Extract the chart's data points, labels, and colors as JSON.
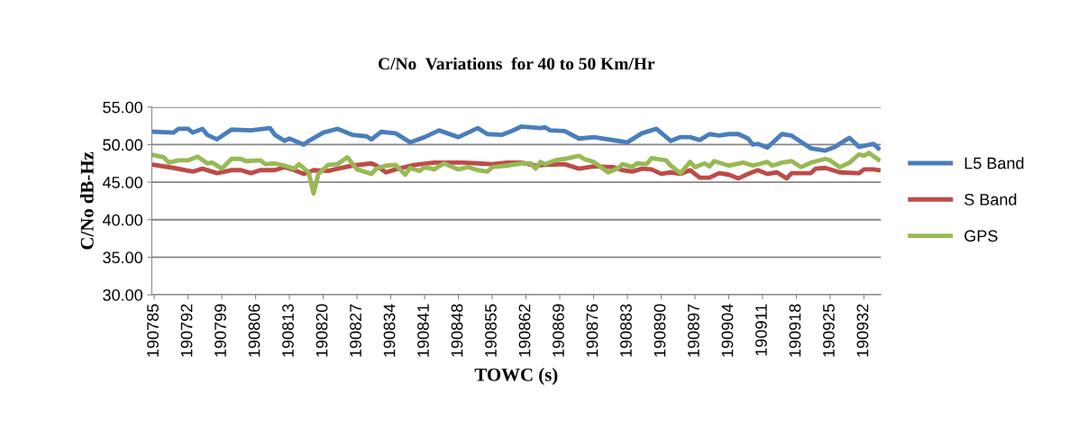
{
  "chart_data": {
    "type": "line",
    "title": "C/No  Variations  for 40 to 50 Km/Hr",
    "xlabel": "TOWC (s)",
    "ylabel": "C/No dB-Hz",
    "series": [
      {
        "name": "L5 Band",
        "color": "#4a7ebb",
        "x": [
          190785,
          190789,
          190790,
          190792,
          190793,
          190795,
          190796,
          190798,
          190801,
          190805,
          190809,
          190810,
          190812,
          190813,
          190816,
          190817,
          190820,
          190823,
          190826,
          190829,
          190830,
          190832,
          190835,
          190838,
          190841,
          190844,
          190848,
          190852,
          190854,
          190857,
          190859,
          190861,
          190865,
          190866,
          190867,
          190870,
          190873,
          190876,
          190881,
          190883,
          190886,
          190889,
          190892,
          190894,
          190896,
          190898,
          190900,
          190902,
          190904,
          190906,
          190908,
          190909,
          190910,
          190912,
          190915,
          190917,
          190921,
          190924,
          190926,
          190929,
          190931,
          190934,
          190935
        ],
        "values": [
          51.7,
          51.6,
          52.1,
          52.1,
          51.6,
          52.1,
          51.3,
          50.7,
          52.0,
          51.9,
          52.2,
          51.3,
          50.5,
          50.8,
          50.0,
          50.5,
          51.6,
          52.1,
          51.3,
          51.1,
          50.7,
          51.7,
          51.5,
          50.3,
          51.0,
          51.9,
          51.0,
          52.2,
          51.4,
          51.3,
          51.8,
          52.4,
          52.2,
          52.3,
          51.9,
          51.8,
          50.8,
          51.0,
          50.5,
          50.3,
          51.5,
          52.1,
          50.5,
          51.0,
          51.0,
          50.6,
          51.4,
          51.2,
          51.4,
          51.4,
          50.8,
          50.0,
          50.1,
          49.6,
          51.4,
          51.2,
          49.5,
          49.2,
          49.7,
          50.9,
          49.7,
          50.1,
          49.5
        ]
      },
      {
        "name": "S Band",
        "color": "#be4b48",
        "x": [
          190785,
          190789,
          190793,
          190795,
          190798,
          190801,
          190803,
          190805,
          190807,
          190810,
          190812,
          190814,
          190816,
          190818,
          190821,
          190823,
          190826,
          190830,
          190831,
          190833,
          190835,
          190839,
          190843,
          190846,
          190849,
          190852,
          190855,
          190858,
          190861,
          190864,
          190866,
          190870,
          190873,
          190876,
          190880,
          190882,
          190884,
          190886,
          190888,
          190890,
          190892,
          190894,
          190896,
          190898,
          190900,
          190902,
          190904,
          190906,
          190908,
          190910,
          190912,
          190914,
          190916,
          190917,
          190921,
          190922,
          190924,
          190927,
          190931,
          190932,
          190934,
          190935
        ],
        "values": [
          47.3,
          46.9,
          46.4,
          46.8,
          46.2,
          46.6,
          46.6,
          46.2,
          46.6,
          46.6,
          47.0,
          46.6,
          46.1,
          46.6,
          46.5,
          46.8,
          47.2,
          47.5,
          47.2,
          46.3,
          46.7,
          47.3,
          47.6,
          47.6,
          47.6,
          47.5,
          47.4,
          47.6,
          47.6,
          47.2,
          47.3,
          47.4,
          46.8,
          47.1,
          47.0,
          46.6,
          46.4,
          46.8,
          46.7,
          46.1,
          46.3,
          46.1,
          46.6,
          45.6,
          45.6,
          46.2,
          46.0,
          45.5,
          46.1,
          46.6,
          46.1,
          46.3,
          45.5,
          46.2,
          46.2,
          46.8,
          46.9,
          46.3,
          46.2,
          46.7,
          46.7,
          46.6
        ]
      },
      {
        "name": "GPS",
        "color": "#98b954",
        "x": [
          190785,
          190787,
          190788,
          190790,
          190792,
          190794,
          190796,
          190797,
          190799,
          190801,
          190803,
          190804,
          190807,
          190808,
          190810,
          190812,
          190814,
          190815,
          190817,
          190818,
          190819,
          190821,
          190823,
          190825,
          190827,
          190830,
          190831,
          190833,
          190835,
          190837,
          190838,
          190840,
          190841,
          190843,
          190845,
          190848,
          190850,
          190852,
          190854,
          190855,
          190858,
          190861,
          190863,
          190864,
          190865,
          190866,
          190868,
          190870,
          190873,
          190874,
          190876,
          190879,
          190881,
          190882,
          190884,
          190885,
          190887,
          190888,
          190891,
          190892,
          190894,
          190896,
          190897,
          190899,
          190900,
          190901,
          190904,
          190907,
          190909,
          190912,
          190913,
          190915,
          190917,
          190919,
          190921,
          190924,
          190925,
          190927,
          190929,
          190931,
          190932,
          190933,
          190935
        ],
        "values": [
          48.6,
          48.3,
          47.6,
          47.9,
          47.9,
          48.4,
          47.5,
          47.6,
          46.8,
          48.1,
          48.1,
          47.8,
          47.9,
          47.4,
          47.5,
          47.2,
          46.8,
          47.4,
          46.3,
          43.5,
          46.1,
          47.3,
          47.4,
          48.3,
          46.7,
          46.1,
          46.8,
          47.2,
          47.3,
          46.0,
          46.9,
          46.5,
          47.0,
          46.7,
          47.5,
          46.7,
          47.0,
          46.6,
          46.4,
          47.0,
          47.2,
          47.5,
          47.5,
          46.8,
          47.7,
          47.4,
          47.9,
          48.1,
          48.5,
          48.1,
          47.7,
          46.3,
          46.8,
          47.4,
          47.0,
          47.5,
          47.4,
          48.2,
          47.9,
          47.2,
          46.2,
          47.7,
          47.0,
          47.5,
          47.1,
          47.8,
          47.2,
          47.6,
          47.2,
          47.7,
          47.2,
          47.6,
          47.8,
          47.0,
          47.6,
          48.1,
          47.9,
          47.0,
          47.6,
          48.7,
          48.5,
          48.9,
          48.0
        ]
      }
    ],
    "xlim": [
      190784.5,
      190935.5
    ],
    "xticks": [
      190785,
      190792,
      190799,
      190806,
      190813,
      190820,
      190827,
      190834,
      190841,
      190848,
      190855,
      190862,
      190869,
      190876,
      190883,
      190890,
      190897,
      190904,
      190911,
      190918,
      190925,
      190932
    ],
    "ylim": [
      30,
      55
    ],
    "yticks": [
      {
        "value": 30,
        "label": "30.00"
      },
      {
        "value": 35,
        "label": "35.00"
      },
      {
        "value": 40,
        "label": "40.00"
      },
      {
        "value": 45,
        "label": "45.00"
      },
      {
        "value": 50,
        "label": "50.00"
      },
      {
        "value": 55,
        "label": "55.00"
      }
    ],
    "grid": "y",
    "legend": "right",
    "marker": "none",
    "line_style": "solid"
  }
}
